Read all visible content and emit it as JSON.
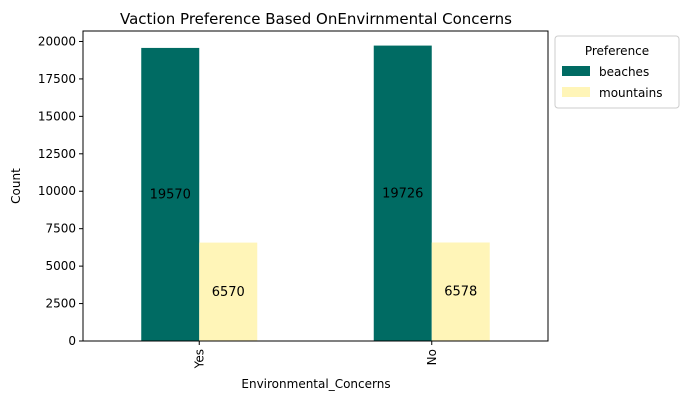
{
  "chart_data": {
    "type": "bar",
    "title": "Vaction Preference Based OnEnvirnmental Concerns",
    "xlabel": "Environmental_Concerns",
    "ylabel": "Count",
    "categories": [
      "Yes",
      "No"
    ],
    "series": [
      {
        "name": "beaches",
        "values": [
          19570,
          19726
        ],
        "color": "#006b63"
      },
      {
        "name": "mountains",
        "values": [
          6570,
          6578
        ],
        "color": "#fff5b8"
      }
    ],
    "data_labels": [
      [
        "19570",
        "6570"
      ],
      [
        "19726",
        "6578"
      ]
    ],
    "ylim": [
      0,
      20700
    ],
    "yticks": [
      0,
      2500,
      5000,
      7500,
      10000,
      12500,
      15000,
      17500,
      20000
    ],
    "ytick_labels": [
      "0",
      "2500",
      "5000",
      "7500",
      "10000",
      "12500",
      "15000",
      "17500",
      "20000"
    ],
    "legend": {
      "title": "Preference",
      "placement": "outside-top-right"
    },
    "grid": false
  }
}
